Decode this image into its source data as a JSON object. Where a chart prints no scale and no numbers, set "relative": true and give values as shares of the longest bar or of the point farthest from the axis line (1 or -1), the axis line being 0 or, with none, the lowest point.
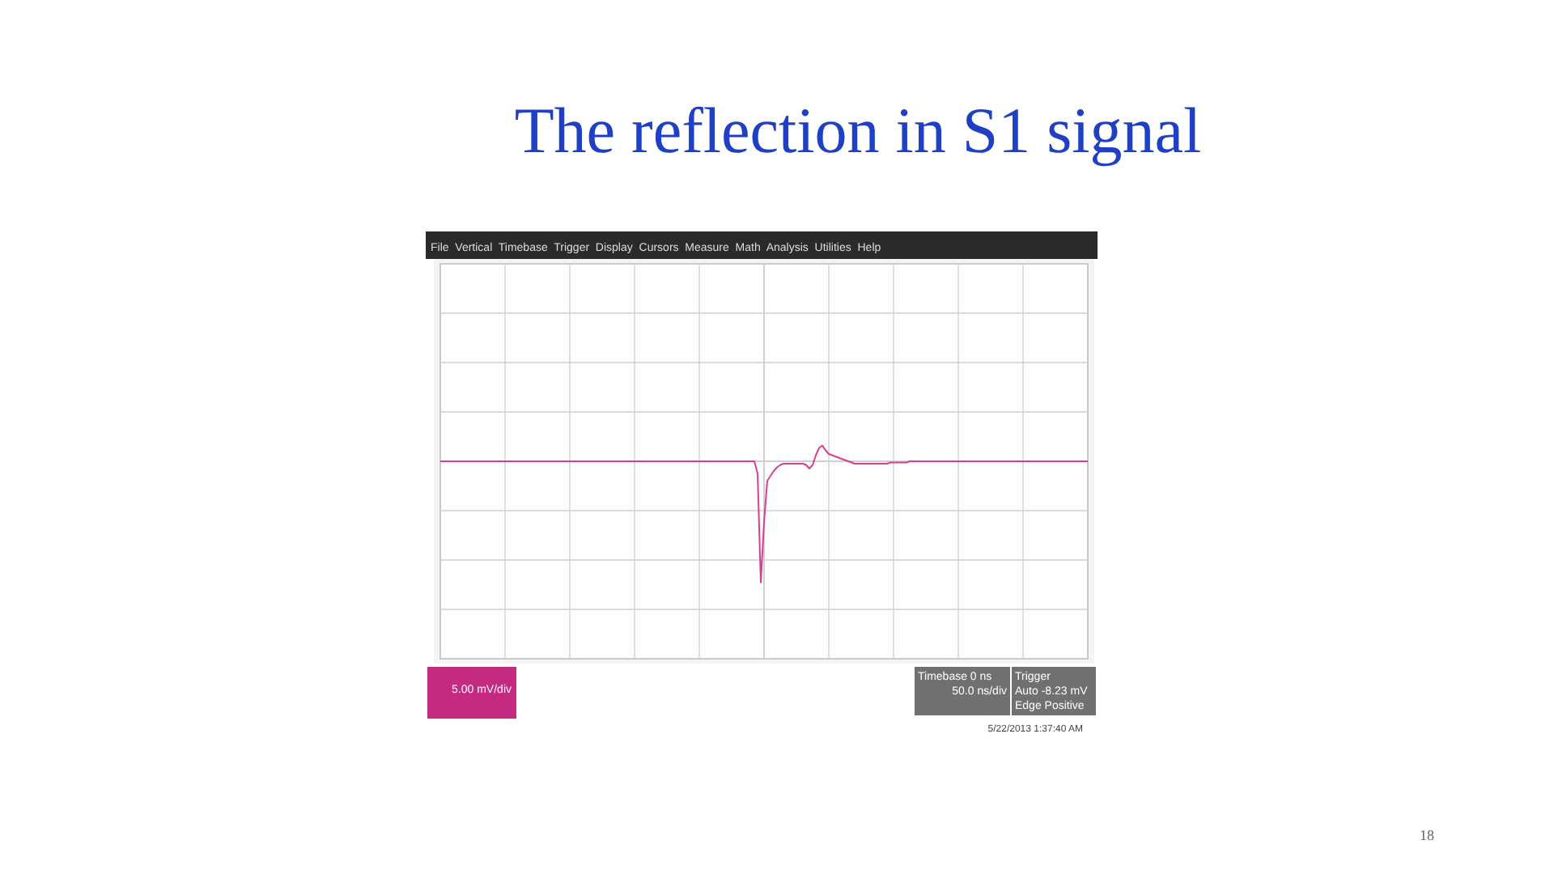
{
  "chart_data": {
    "type": "line",
    "title": "The reflection in S1 signal",
    "relative": true,
    "grid": true,
    "marker": "none",
    "line_style": "solid",
    "categories": [
      null,
      null,
      null,
      null,
      null,
      null,
      null,
      null,
      null,
      null,
      null,
      null,
      null,
      null,
      null,
      null,
      null,
      null,
      null,
      null,
      null,
      null,
      null,
      null,
      null,
      null,
      null,
      null,
      null,
      null,
      null,
      null,
      null,
      null,
      null,
      null,
      null,
      null,
      null,
      null,
      null,
      null,
      null,
      null,
      null,
      null,
      null,
      null,
      null,
      null,
      null,
      null,
      null,
      null,
      null,
      null,
      null,
      null,
      null,
      null,
      null,
      null,
      null,
      null,
      null,
      null,
      null,
      null,
      null,
      null,
      null,
      null,
      null,
      null,
      null,
      null,
      null,
      null,
      null,
      null,
      null,
      null,
      null,
      null,
      null,
      null,
      null,
      null,
      null,
      null,
      null,
      null,
      null,
      null,
      null,
      null,
      null,
      null,
      null,
      null,
      null,
      null,
      null,
      null,
      null,
      null,
      null,
      null,
      null,
      null,
      null,
      null,
      null,
      null,
      null,
      null,
      null,
      null,
      null,
      null,
      null,
      null,
      null,
      null,
      null,
      null,
      null,
      null,
      null,
      null,
      null,
      null,
      null,
      null,
      null,
      null,
      null,
      null,
      null,
      null,
      null,
      null,
      null,
      null,
      null,
      null,
      null,
      null,
      null,
      null,
      null,
      null,
      null,
      null,
      null,
      null,
      null,
      null,
      null,
      null,
      null,
      null,
      null,
      null,
      null,
      null,
      null,
      null,
      null,
      null,
      null,
      null,
      null,
      null,
      null,
      null,
      null,
      null,
      null,
      null,
      null,
      null,
      null,
      null,
      null,
      null,
      null,
      null,
      null,
      null,
      null,
      null,
      null,
      null,
      null,
      null,
      null,
      null,
      null,
      null,
      null
    ],
    "series": [
      {
        "color": "#d6408f",
        "values": [
          0,
          0,
          0,
          0,
          0,
          0,
          0,
          0,
          0,
          0,
          0,
          0,
          0,
          0,
          0,
          0,
          0,
          0,
          0,
          0,
          0,
          0,
          0,
          0,
          0,
          0,
          0,
          0,
          0,
          0,
          0,
          0,
          0,
          0,
          0,
          0,
          0,
          0,
          0,
          0,
          0,
          0,
          0,
          0,
          0,
          0,
          0,
          0,
          0,
          0,
          0,
          0,
          0,
          0,
          0,
          0,
          0,
          0,
          0,
          0,
          0,
          0,
          0,
          0,
          0,
          0,
          0,
          0,
          0,
          0,
          0,
          0,
          0,
          0,
          0,
          0,
          0,
          0,
          0,
          0,
          0,
          0,
          0,
          0,
          0,
          0,
          0,
          0,
          0,
          0,
          0,
          0,
          0,
          0,
          0,
          0,
          0,
          0,
          -0.1,
          -1,
          -0.5,
          -0.16,
          -0.12,
          -0.08,
          -0.05,
          -0.03,
          -0.02,
          -0.02,
          -0.02,
          -0.02,
          -0.02,
          -0.02,
          -0.02,
          -0.03,
          -0.06,
          -0.03,
          0.05,
          0.11,
          0.13,
          0.09,
          0.06,
          0.05,
          0.04,
          0.03,
          0.02,
          0.01,
          0,
          -0.01,
          -0.02,
          -0.02,
          -0.02,
          -0.02,
          -0.02,
          -0.02,
          -0.02,
          -0.02,
          -0.02,
          -0.02,
          -0.02,
          -0.01,
          -0.01,
          -0.01,
          -0.01,
          -0.01,
          -0.01,
          0,
          0,
          0,
          0,
          0,
          0,
          0,
          0,
          0,
          0,
          0,
          0,
          0,
          0,
          0,
          0,
          0,
          0,
          0,
          0,
          0,
          0,
          0,
          0,
          0,
          0,
          0,
          0,
          0,
          0,
          0,
          0,
          0,
          0,
          0,
          0,
          0,
          0,
          0,
          0,
          0,
          0,
          0,
          0,
          0,
          0,
          0,
          0,
          0,
          0,
          0,
          0,
          0,
          0,
          0,
          0
        ]
      }
    ],
    "annotations": [
      "File  Vertical  Timebase  Trigger  Display  Cursors  Measure  Math  Analysis  Utilities  Help",
      "5.00 mV/div",
      "Timebase 0 ns",
      "50.0 ns/div",
      "Trigger",
      "Auto -8.23 mV",
      "Edge Positive",
      "5/22/2013 1:37:40 AM",
      "18"
    ]
  }
}
